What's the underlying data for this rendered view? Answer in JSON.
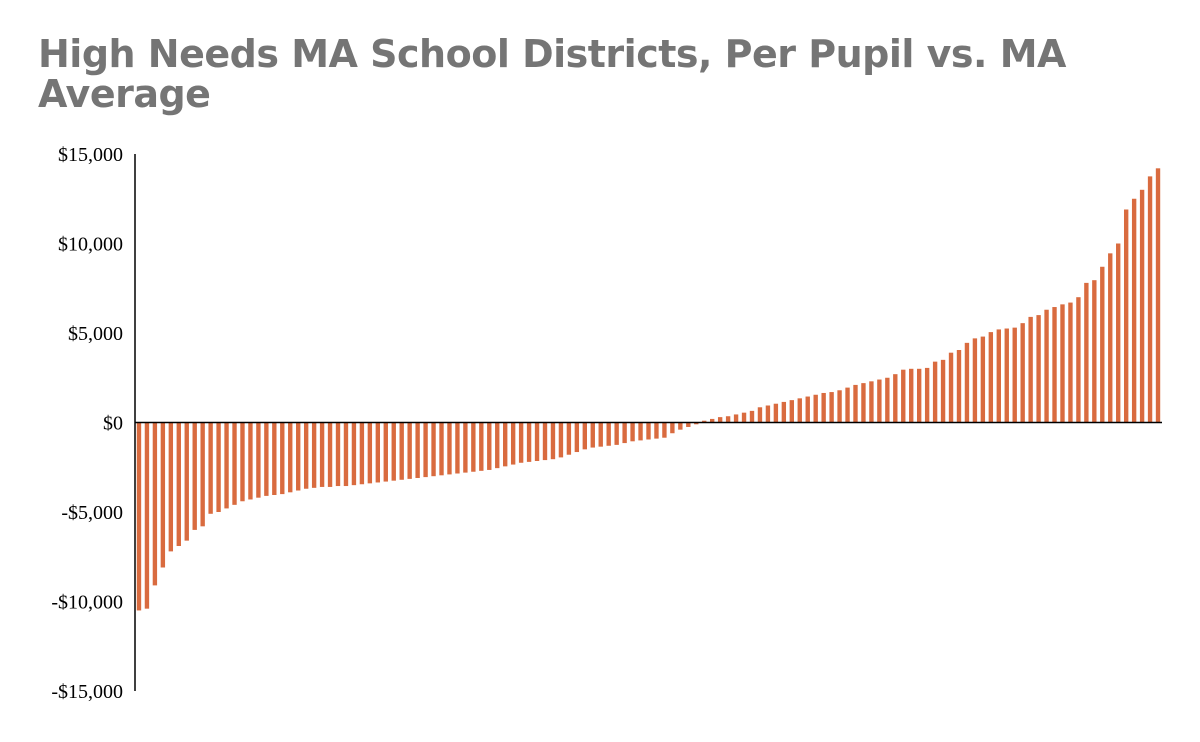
{
  "chart_data": {
    "type": "bar",
    "title": "High Needs MA School Districts, Per Pupil vs. MA Average",
    "xlabel": "",
    "ylabel": "",
    "ylim": [
      -15000,
      15000
    ],
    "y_ticks": [
      15000,
      10000,
      5000,
      0,
      -5000,
      -10000,
      -15000
    ],
    "y_tick_labels": [
      "$15,000",
      "$10,000",
      "$5,000",
      "$0",
      "-$5,000",
      "-$10,000",
      "-$15,000"
    ],
    "grid": false,
    "legend": "none",
    "bar_color": "#D96B3F",
    "values": [
      -10500,
      -10400,
      -9100,
      -8100,
      -7200,
      -6900,
      -6600,
      -6000,
      -5800,
      -5100,
      -5000,
      -4800,
      -4600,
      -4400,
      -4300,
      -4200,
      -4100,
      -4050,
      -4000,
      -3900,
      -3800,
      -3700,
      -3650,
      -3600,
      -3600,
      -3550,
      -3550,
      -3500,
      -3450,
      -3400,
      -3350,
      -3300,
      -3250,
      -3200,
      -3150,
      -3100,
      -3050,
      -3000,
      -2950,
      -2900,
      -2850,
      -2800,
      -2750,
      -2700,
      -2650,
      -2550,
      -2450,
      -2350,
      -2250,
      -2200,
      -2150,
      -2100,
      -2050,
      -1950,
      -1800,
      -1650,
      -1500,
      -1400,
      -1350,
      -1300,
      -1250,
      -1150,
      -1050,
      -1000,
      -950,
      -900,
      -850,
      -600,
      -400,
      -250,
      -100,
      100,
      200,
      300,
      350,
      450,
      550,
      650,
      850,
      950,
      1050,
      1150,
      1250,
      1350,
      1450,
      1550,
      1650,
      1700,
      1800,
      1950,
      2100,
      2200,
      2300,
      2400,
      2500,
      2700,
      2950,
      3000,
      3000,
      3050,
      3400,
      3500,
      3900,
      4050,
      4450,
      4700,
      4800,
      5050,
      5200,
      5250,
      5300,
      5550,
      5900,
      6000,
      6300,
      6450,
      6600,
      6700,
      7000,
      7800,
      7950,
      8700,
      9450,
      10000,
      11900,
      12500,
      13000,
      13750,
      14200
    ]
  }
}
